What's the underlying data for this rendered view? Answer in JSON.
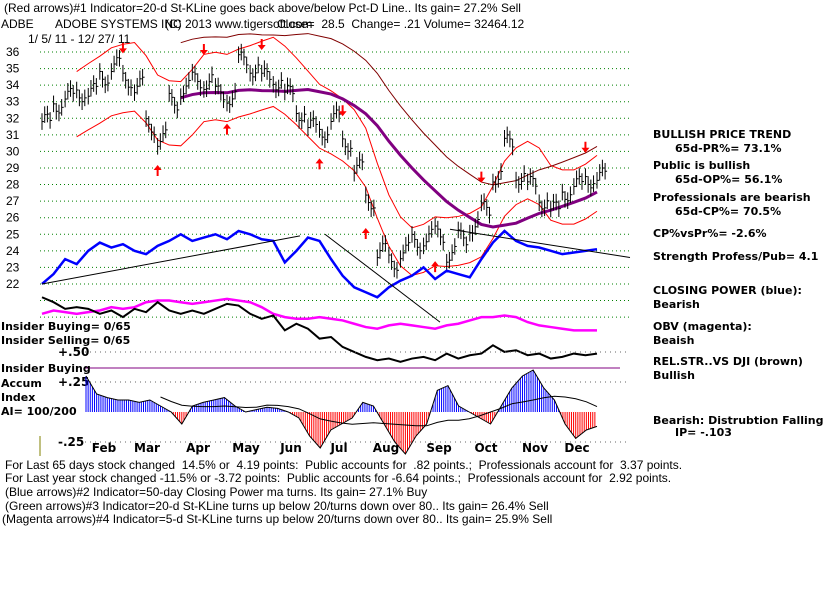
{
  "header": {
    "indicator1": "(Red arrows)#1 Indicator=20-d St-KLine goes back above/below Pct-D Line.. Its gain= 27.2% Sell",
    "ticker": "ADBE",
    "company": "ADOBE SYSTEMS INC",
    "copyright": "(C) 2013 www.tigersoft.com",
    "quote": "Close=  28.5  Change= .21 Volume= 32464.12",
    "date_range": "1/ 5/ 11 - 12/ 27/ 11"
  },
  "right_panel": {
    "trend_title": "BULLISH PRICE TREND",
    "pr": "65d-PR%= 73.1%",
    "public": "Public is bullish",
    "op": "65d-OP%= 56.1%",
    "professionals": "Professionals are bearish",
    "cp": "65d-CP%= 70.5%",
    "cp_vs_pr": "CP%vsPr%= -2.6%",
    "strength": "Strength Profess/Pub= 4.1",
    "closing_power_label": "CLOSING POWER (blue):",
    "closing_power_value": "Bearish",
    "obv_label": "OBV (magenta):",
    "obv_value": "Beaish",
    "relstr_label": "REL.STR..VS DJI (brown)",
    "relstr_value": "Bullish",
    "ip_label": "Bearish: Distrubtion Falling",
    "ip_value": "IP= -.103"
  },
  "left_panel": {
    "insider_buying": "Insider Buying= 0/65",
    "insider_selling": "Insider Selling= 0/65",
    "insider_buying_line": "Insider Buying",
    "accum1": "Accum",
    "accum2": "Index",
    "ai": "AI= 100/200"
  },
  "footer": {
    "line1": "For Last 65 days stock changed  14.5% or  4.19 points:  Public accounts for  .82 points.;  Professionals account for  3.37 points.",
    "line2": "For Last year stock changed -11.5% or -3.72 points:  Public accounts for -6.64 points.;  Professionals account for  2.92 points.",
    "line3": "(Blue arrows)#2 Indicator=50-day Closing Power ma turns. Its gain= 27.1% Buy",
    "line4": "(Green arrows)#3 Indicator=20-d St-KLine turns up below 20/turns down over 80.. Its gain= 26.4% Sell",
    "line5": "(Magenta arrows)#4 Indicator=5-d St-KLine turns up below 20/turns down over 80.. Its gain= 25.9% Sell"
  },
  "chart_data": {
    "type": "line",
    "title": "ADBE ADOBE SYSTEMS INC",
    "x_tick_labels": [
      "Feb",
      "Mar",
      "Apr",
      "May",
      "Jun",
      "Jul",
      "Aug",
      "Sep",
      "Oct",
      "Nov",
      "Dec"
    ],
    "price_ticks": [
      "36",
      "35",
      "34",
      "33",
      "32",
      "31",
      "30",
      "29",
      "28",
      "27",
      "26",
      "25",
      "24",
      "23",
      "22"
    ],
    "ylim": [
      22,
      36
    ],
    "accum_ticks": [
      "+.50",
      "+.25",
      "-.25"
    ],
    "price_close": [
      31.8,
      32.8,
      33.3,
      33.5,
      33.6,
      34.5,
      35.2,
      34.3,
      34.0,
      31.5,
      30.8,
      33.0,
      33.8,
      34.3,
      34.2,
      33.5,
      33.3,
      35.5,
      35.0,
      34.5,
      34.2,
      33.5,
      32.3,
      31.5,
      31.2,
      32.0,
      30.5,
      29.0,
      27.0,
      24.0,
      23.3,
      24.0,
      24.5,
      24.8,
      25.0,
      23.8,
      24.8,
      25.5,
      26.5,
      28.5,
      30.5,
      28.5,
      28.0,
      27.0,
      26.5,
      27.5,
      28.0,
      28.3,
      28.5
    ],
    "closing_power": [
      22.0,
      22.6,
      23.5,
      23.2,
      24.0,
      24.5,
      24.2,
      24.4,
      24.0,
      23.8,
      24.3,
      24.6,
      25.0,
      24.6,
      24.8,
      25.0,
      24.7,
      25.2,
      25.0,
      24.7,
      24.6,
      23.3,
      24.0,
      24.8,
      24.6,
      23.5,
      22.5,
      21.8,
      21.5,
      21.2,
      21.8,
      22.2,
      22.5,
      23.0,
      22.3,
      22.8,
      22.6,
      22.4,
      23.5,
      24.5,
      25.2,
      24.6,
      24.3,
      24.2,
      24.0,
      23.8,
      23.9,
      24.0,
      24.1
    ],
    "obv": [
      20.2,
      20.4,
      20.3,
      20.2,
      20.3,
      20.4,
      20.6,
      20.5,
      20.6,
      20.9,
      21.0,
      21.0,
      20.9,
      20.8,
      20.9,
      21.0,
      21.1,
      21.0,
      20.9,
      20.6,
      20.2,
      20.0,
      19.9,
      19.9,
      20.0,
      19.9,
      19.8,
      19.6,
      19.4,
      19.3,
      19.5,
      19.6,
      19.5,
      19.4,
      19.3,
      19.5,
      19.6,
      19.8,
      20.0,
      20.0,
      20.1,
      20.0,
      19.7,
      19.5,
      19.4,
      19.3,
      19.2,
      19.2,
      19.2
    ],
    "rel_strength": [
      21.2,
      20.9,
      20.5,
      20.6,
      20.5,
      20.2,
      20.4,
      20.0,
      20.5,
      20.3,
      20.9,
      20.4,
      20.2,
      20.4,
      20.2,
      20.5,
      20.8,
      20.7,
      20.2,
      19.9,
      20.1,
      19.2,
      19.6,
      19.3,
      18.7,
      18.8,
      18.2,
      17.9,
      17.6,
      17.4,
      17.5,
      17.3,
      17.5,
      17.6,
      17.4,
      17.8,
      17.5,
      17.7,
      17.8,
      18.3,
      17.9,
      18.0,
      17.7,
      17.8,
      17.5,
      17.6,
      17.8,
      17.7,
      17.8
    ],
    "accum_index": [
      0.3,
      0.15,
      0.12,
      0.1,
      0.1,
      0.08,
      0.1,
      0.05,
      0.0,
      -0.1,
      0.05,
      0.08,
      0.1,
      0.12,
      0.05,
      0.0,
      0.02,
      0.04,
      0.03,
      0.0,
      -0.05,
      -0.2,
      -0.3,
      -0.15,
      -0.1,
      -0.05,
      0.08,
      0.05,
      -0.1,
      -0.25,
      -0.35,
      -0.2,
      -0.1,
      0.18,
      0.22,
      0.05,
      0.0,
      -0.05,
      -0.1,
      0.05,
      0.2,
      0.3,
      0.35,
      0.2,
      0.1,
      -0.1,
      -0.22,
      -0.15,
      -0.12
    ],
    "red_arrows": [
      {
        "week": 7,
        "dir": "down"
      },
      {
        "week": 10,
        "dir": "up"
      },
      {
        "week": 14,
        "dir": "down"
      },
      {
        "week": 16,
        "dir": "up"
      },
      {
        "week": 19,
        "dir": "down"
      },
      {
        "week": 24,
        "dir": "up"
      },
      {
        "week": 26,
        "dir": "down"
      },
      {
        "week": 28,
        "dir": "up"
      },
      {
        "week": 38,
        "dir": "down"
      },
      {
        "week": 34,
        "dir": "up"
      },
      {
        "week": 47,
        "dir": "down"
      }
    ]
  },
  "colors": {
    "price": "#000000",
    "band": "#ff0000",
    "ma": "#800080",
    "upper": "#800000",
    "cp": "#0000ff",
    "obv": "#ff00ff",
    "rs": "#000000",
    "grid": "#008000",
    "pos": "#0000ff",
    "neg": "#ff0000"
  }
}
